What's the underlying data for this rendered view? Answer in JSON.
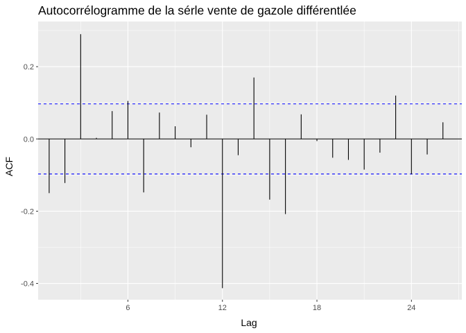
{
  "chart_data": {
    "type": "bar",
    "title": "Autocorrélogramme de la sérle vente de gazole différentlée",
    "xlabel": "Lag",
    "ylabel": "ACF",
    "xlim": [
      0.3,
      27.2
    ],
    "ylim": [
      -0.445,
      0.325
    ],
    "x_ticks": [
      {
        "value": 6,
        "label": "6"
      },
      {
        "value": 12,
        "label": "12"
      },
      {
        "value": 18,
        "label": "18"
      },
      {
        "value": 24,
        "label": "24"
      }
    ],
    "y_ticks": [
      {
        "value": 0.2,
        "label": "0.2"
      },
      {
        "value": 0.0,
        "label": "0.0"
      },
      {
        "value": -0.2,
        "label": "-0.2"
      },
      {
        "value": -0.4,
        "label": "-0.4"
      }
    ],
    "confidence_bound": 0.097,
    "grid": true,
    "colors": {
      "panel_bg": "#ebebeb",
      "grid": "#ffffff",
      "spike": "#000000",
      "confidence_line": "#0000ff"
    },
    "series": [
      {
        "x": [
          1,
          2,
          3,
          4,
          5,
          6,
          7,
          8,
          9,
          10,
          11,
          12,
          13,
          14,
          15,
          16,
          17,
          18,
          19,
          20,
          21,
          22,
          23,
          24,
          25,
          26
        ],
        "values": [
          -0.15,
          -0.122,
          0.29,
          0.003,
          0.077,
          0.105,
          -0.148,
          0.073,
          0.035,
          -0.023,
          0.067,
          -0.413,
          -0.045,
          0.17,
          -0.168,
          -0.208,
          0.068,
          -0.006,
          -0.052,
          -0.058,
          -0.085,
          -0.038,
          0.12,
          -0.098,
          -0.043,
          0.046
        ]
      }
    ]
  }
}
